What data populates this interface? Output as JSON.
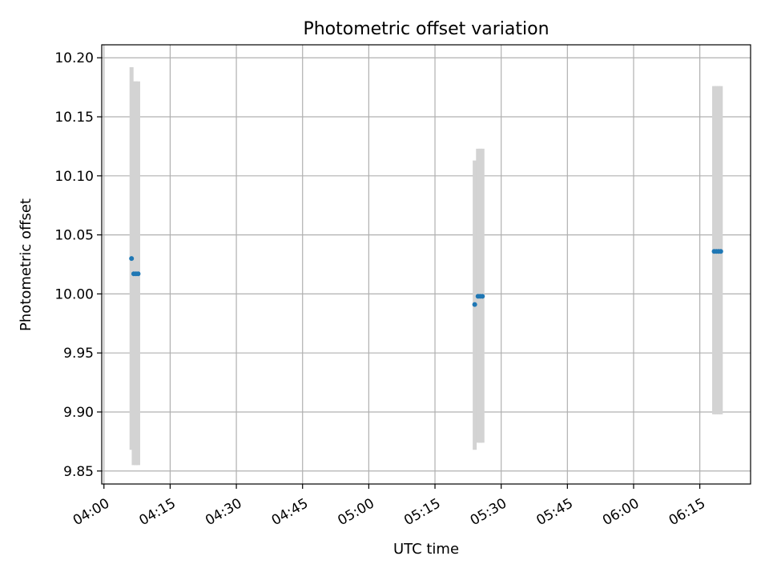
{
  "chart_data": {
    "type": "scatter",
    "title": "Photometric offset variation",
    "xlabel": "UTC time",
    "ylabel": "Photometric offset",
    "x_ticks": [
      "04:00",
      "04:15",
      "04:30",
      "04:45",
      "05:00",
      "05:15",
      "05:30",
      "05:45",
      "06:00",
      "06:15"
    ],
    "y_ticks": [
      "9.85",
      "9.90",
      "9.95",
      "10.00",
      "10.05",
      "10.10",
      "10.15",
      "10.20"
    ],
    "xlim": [
      "03:59:30",
      "06:26:30"
    ],
    "ylim": [
      9.839,
      10.211
    ],
    "grid": true,
    "colors": {
      "point": "#1f77b4",
      "error_band": "#d3d3d3",
      "grid": "#b0b0b0",
      "axis": "#000000"
    },
    "series": [
      {
        "points": [
          {
            "x": "04:06:15",
            "y": 10.03,
            "y_low": 9.868,
            "y_high": 10.192
          },
          {
            "x": "04:06:45",
            "y": 10.017,
            "y_low": 9.855,
            "y_high": 10.18
          },
          {
            "x": "04:07:15",
            "y": 10.017,
            "y_low": 9.855,
            "y_high": 10.18
          },
          {
            "x": "04:07:45",
            "y": 10.017,
            "y_low": 9.855,
            "y_high": 10.18
          },
          {
            "x": "05:24:00",
            "y": 9.991,
            "y_low": 9.868,
            "y_high": 10.113
          },
          {
            "x": "05:24:45",
            "y": 9.998,
            "y_low": 9.874,
            "y_high": 10.123
          },
          {
            "x": "05:25:15",
            "y": 9.998,
            "y_low": 9.874,
            "y_high": 10.123
          },
          {
            "x": "05:25:45",
            "y": 9.998,
            "y_low": 9.874,
            "y_high": 10.123
          },
          {
            "x": "06:18:15",
            "y": 10.036,
            "y_low": 9.898,
            "y_high": 10.176
          },
          {
            "x": "06:18:45",
            "y": 10.036,
            "y_low": 9.898,
            "y_high": 10.176
          },
          {
            "x": "06:19:15",
            "y": 10.036,
            "y_low": 9.898,
            "y_high": 10.176
          },
          {
            "x": "06:19:45",
            "y": 10.036,
            "y_low": 9.898,
            "y_high": 10.176
          }
        ]
      }
    ]
  }
}
